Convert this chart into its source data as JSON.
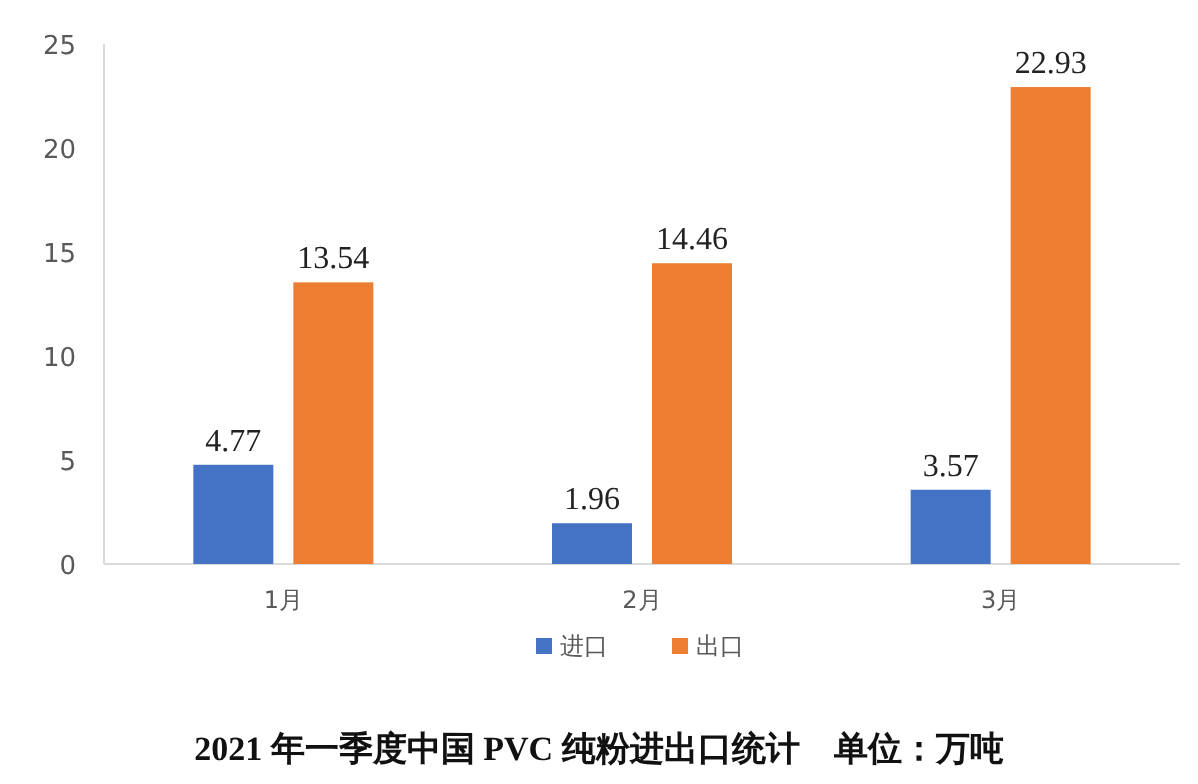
{
  "chart_data": {
    "type": "bar",
    "title": "2021 年一季度中国 PVC 纯粉进出口统计　单位：万吨",
    "categories": [
      "1月",
      "2月",
      "3月"
    ],
    "series": [
      {
        "name": "进口",
        "color": "#4472c4",
        "values": [
          4.77,
          1.96,
          3.57
        ]
      },
      {
        "name": "出口",
        "color": "#ed7d31",
        "values": [
          13.54,
          14.46,
          22.93
        ]
      }
    ],
    "ylim": [
      0,
      25
    ],
    "yticks": [
      0,
      5,
      10,
      15,
      20,
      25
    ],
    "data_labels": true,
    "legend": "bottom",
    "grid": false
  }
}
